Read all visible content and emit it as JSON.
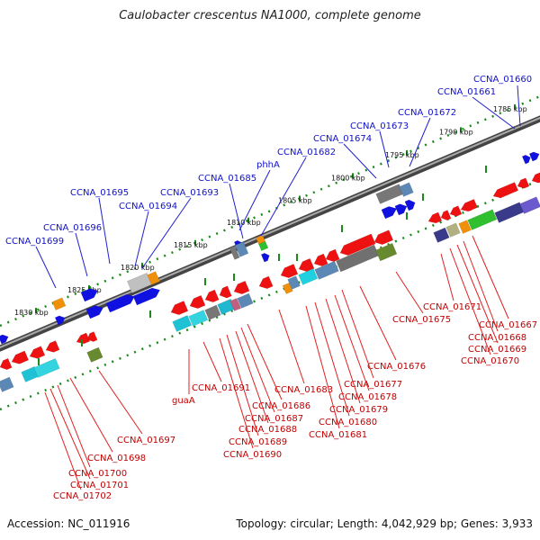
{
  "title": "Caulobacter crescentus NA1000, complete genome",
  "footer": {
    "accession": "Accession: NC_011916",
    "summary": "Topology: circular; Length: 4,042,929 bp; Genes: 3,933"
  },
  "kbp_ticks": [
    "1785 kbp",
    "1790 kbp",
    "1795 kbp",
    "1800 kbp",
    "1805 kbp",
    "1810 kbp",
    "1815 kbp",
    "1820 kbp",
    "1825 kbp",
    "1830 kbp"
  ],
  "colors": {
    "forward": "#1010e0",
    "reverse": "#ee1111",
    "label_forward": "#1010c8",
    "label_reverse": "#c00000"
  },
  "labels_top": [
    "CCNA_01660",
    "CCNA_01661",
    "CCNA_01672",
    "CCNA_01673",
    "CCNA_01674",
    "CCNA_01682",
    "phhA",
    "CCNA_01685",
    "CCNA_01693",
    "CCNA_01694",
    "CCNA_01695",
    "CCNA_01696",
    "CCNA_01699"
  ],
  "labels_bottom": [
    "CCNA_01671",
    "CCNA_01667",
    "CCNA_01668",
    "CCNA_01669",
    "CCNA_01670",
    "CCNA_01675",
    "CCNA_01676",
    "CCNA_01677",
    "CCNA_01678",
    "CCNA_01679",
    "CCNA_01680",
    "CCNA_01681",
    "CCNA_01683",
    "CCNA_01686",
    "CCNA_01687",
    "CCNA_01688",
    "CCNA_01689",
    "CCNA_01690",
    "CCNA_01691",
    "guaA",
    "CCNA_01697",
    "CCNA_01698",
    "CCNA_01700",
    "CCNA_01701",
    "CCNA_01702"
  ]
}
